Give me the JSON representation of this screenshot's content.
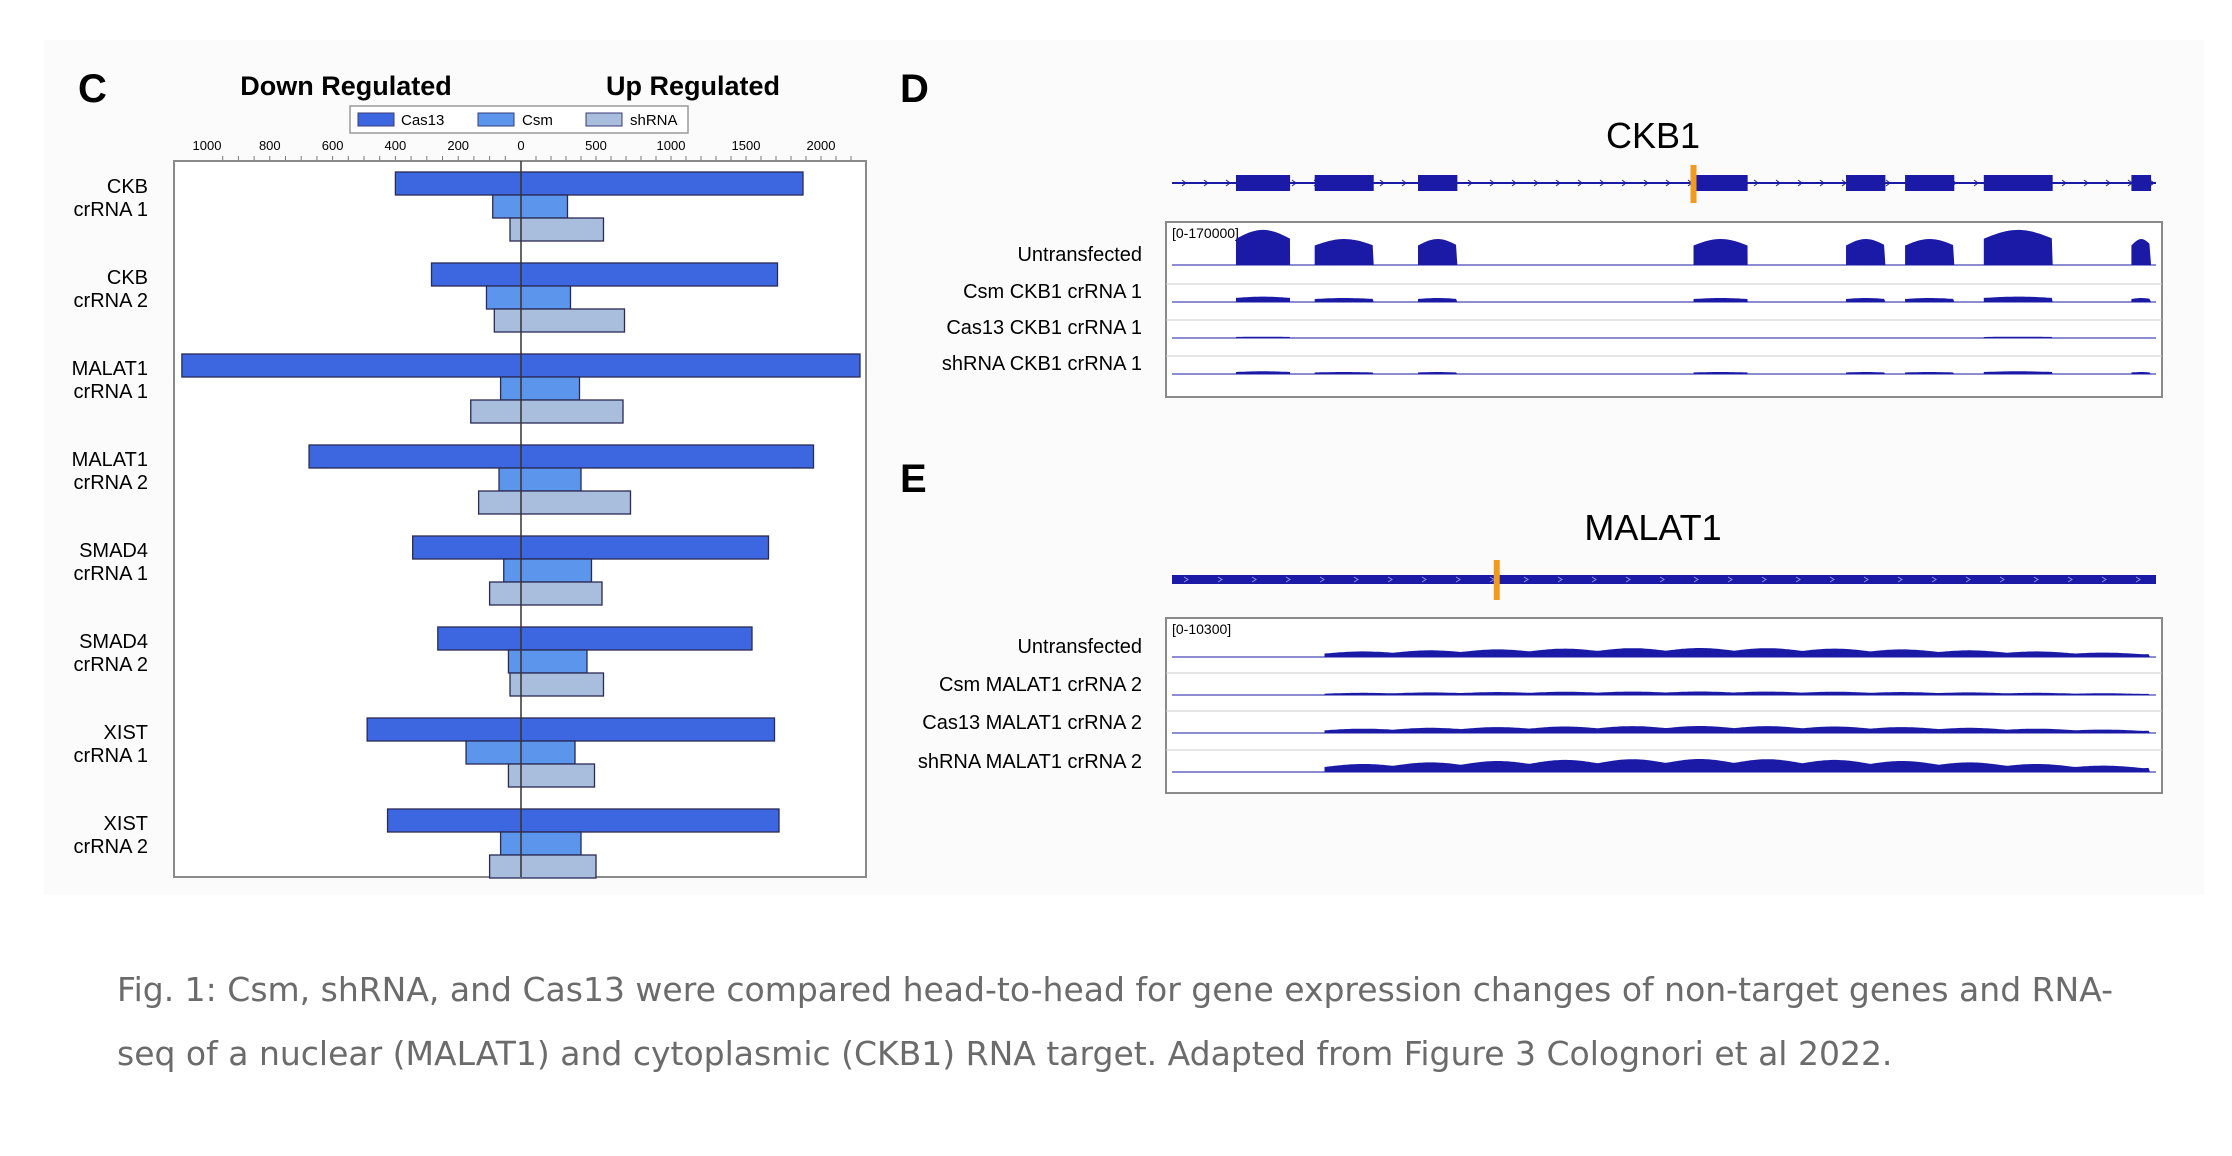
{
  "panels": {
    "c": {
      "letter": "C",
      "header_left": "Down Regulated",
      "header_right": "Up Regulated",
      "down_ticks": [
        "1000",
        "800",
        "600",
        "400",
        "200",
        "0"
      ],
      "up_ticks": [
        "0",
        "500",
        "1000",
        "1500",
        "2000"
      ]
    },
    "d": {
      "letter": "D",
      "gene": "CKB1",
      "range": "[0-170000]",
      "tracks": [
        "Untransfected",
        "Csm CKB1 crRNA 1",
        "Cas13 CKB1 crRNA 1",
        "shRNA CKB1 crRNA 1"
      ]
    },
    "e": {
      "letter": "E",
      "gene": "MALAT1",
      "range": "[0-10300]",
      "tracks": [
        "Untransfected",
        "Csm MALAT1 crRNA 2",
        "Cas13 MALAT1 crRNA 2",
        "shRNA MALAT1 crRNA 2"
      ]
    }
  },
  "colors": {
    "Cas13": "#3d67e0",
    "Csm": "#5b95ec",
    "shRNA": "#a9bddc",
    "track": "#1a1aa6",
    "marker": "#f29a1f"
  },
  "chart_data": [
    {
      "type": "bar",
      "subtype": "diverging-horizontal",
      "title_left": "Down Regulated",
      "title_right": "Up Regulated",
      "categories": [
        "CKB crRNA 1",
        "CKB crRNA 2",
        "MALAT1 crRNA 1",
        "MALAT1 crRNA 2",
        "SMAD4 crRNA 1",
        "SMAD4 crRNA 2",
        "XIST crRNA 1",
        "XIST crRNA 2"
      ],
      "category_lines": [
        [
          "CKB",
          "crRNA 1"
        ],
        [
          "CKB",
          "crRNA 2"
        ],
        [
          "MALAT1",
          "crRNA 1"
        ],
        [
          "MALAT1",
          "crRNA 2"
        ],
        [
          "SMAD4",
          "crRNA 1"
        ],
        [
          "SMAD4",
          "crRNA 2"
        ],
        [
          "XIST",
          "crRNA 1"
        ],
        [
          "XIST",
          "crRNA 2"
        ]
      ],
      "down_axis_ticks": [
        1000,
        800,
        600,
        400,
        200,
        0
      ],
      "up_axis_ticks": [
        0,
        500,
        1000,
        1500,
        2000
      ],
      "legend_position": "top-center",
      "series": [
        {
          "name": "Cas13",
          "down": [
            400,
            285,
            1080,
            675,
            345,
            265,
            490,
            425
          ],
          "up": [
            1880,
            1710,
            2260,
            1950,
            1650,
            1540,
            1690,
            1720
          ]
        },
        {
          "name": "Csm",
          "down": [
            90,
            110,
            65,
            70,
            55,
            40,
            175,
            65
          ],
          "up": [
            310,
            330,
            390,
            400,
            470,
            440,
            360,
            400
          ]
        },
        {
          "name": "shRNA",
          "down": [
            35,
            85,
            160,
            135,
            100,
            35,
            40,
            100
          ],
          "up": [
            550,
            690,
            680,
            730,
            540,
            550,
            490,
            500
          ]
        }
      ]
    },
    {
      "type": "area",
      "subtype": "genome-coverage-tracks",
      "gene": "CKB1",
      "y_range": [
        0,
        170000
      ],
      "track_labels": [
        "Untransfected",
        "Csm CKB1 crRNA 1",
        "Cas13 CKB1 crRNA 1",
        "shRNA CKB1 crRNA 1"
      ],
      "exons": [
        [
          0.065,
          0.12
        ],
        [
          0.145,
          0.205
        ],
        [
          0.25,
          0.29
        ],
        [
          0.53,
          0.585
        ],
        [
          0.685,
          0.725
        ],
        [
          0.745,
          0.795
        ],
        [
          0.825,
          0.895
        ],
        [
          0.975,
          0.995
        ]
      ],
      "marker_position": 0.53,
      "relative_levels": [
        1.0,
        0.14,
        0.02,
        0.07
      ]
    },
    {
      "type": "area",
      "subtype": "genome-coverage-tracks",
      "gene": "MALAT1",
      "y_range": [
        0,
        10300
      ],
      "track_labels": [
        "Untransfected",
        "Csm MALAT1 crRNA 2",
        "Cas13 MALAT1 crRNA 2",
        "shRNA MALAT1 crRNA 2"
      ],
      "marker_position": 0.33,
      "relative_levels": [
        0.65,
        0.25,
        0.5,
        0.9
      ]
    }
  ],
  "caption": "Fig. 1: Csm, shRNA, and Cas13 were compared head-to-head for gene expression changes of non-target genes and RNA-seq of a nuclear (MALAT1) and cytoplasmic (CKB1) RNA target. Adapted from Figure 3 Colognori et al 2022."
}
